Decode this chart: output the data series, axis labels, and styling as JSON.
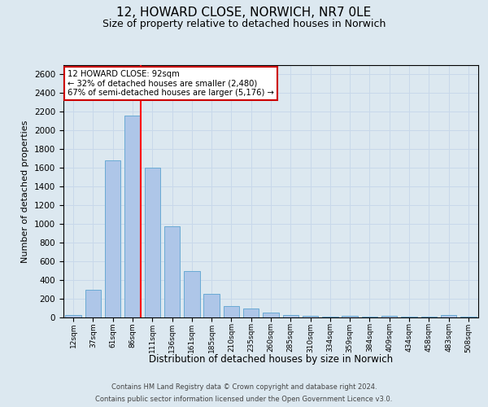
{
  "title_line1": "12, HOWARD CLOSE, NORWICH, NR7 0LE",
  "title_line2": "Size of property relative to detached houses in Norwich",
  "xlabel": "Distribution of detached houses by size in Norwich",
  "ylabel": "Number of detached properties",
  "categories": [
    "12sqm",
    "37sqm",
    "61sqm",
    "86sqm",
    "111sqm",
    "136sqm",
    "161sqm",
    "185sqm",
    "210sqm",
    "235sqm",
    "260sqm",
    "285sqm",
    "310sqm",
    "334sqm",
    "359sqm",
    "384sqm",
    "409sqm",
    "434sqm",
    "458sqm",
    "483sqm",
    "508sqm"
  ],
  "values": [
    25,
    300,
    1680,
    2160,
    1600,
    975,
    500,
    250,
    125,
    100,
    50,
    30,
    15,
    10,
    20,
    10,
    15,
    10,
    5,
    25,
    5
  ],
  "bar_color": "#aec6e8",
  "bar_edge_color": "#6aaad4",
  "red_line_index": 3,
  "annotation_line1": "12 HOWARD CLOSE: 92sqm",
  "annotation_line2": "← 32% of detached houses are smaller (2,480)",
  "annotation_line3": "67% of semi-detached houses are larger (5,176) →",
  "annotation_box_color": "#ffffff",
  "annotation_box_edge_color": "#cc0000",
  "ylim": [
    0,
    2700
  ],
  "yticks": [
    0,
    200,
    400,
    600,
    800,
    1000,
    1200,
    1400,
    1600,
    1800,
    2000,
    2200,
    2400,
    2600
  ],
  "grid_color": "#c8d8ea",
  "background_color": "#dce8f0",
  "footer_line1": "Contains HM Land Registry data © Crown copyright and database right 2024.",
  "footer_line2": "Contains public sector information licensed under the Open Government Licence v3.0."
}
